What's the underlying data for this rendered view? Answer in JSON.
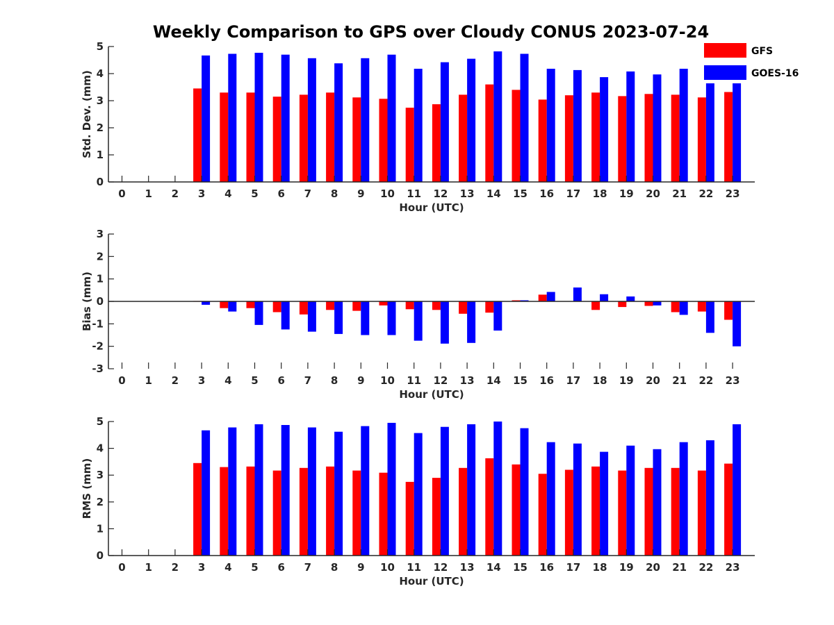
{
  "title": "Weekly Comparison to GPS over Cloudy CONUS 2023-07-24",
  "legend": [
    {
      "name": "GFS",
      "color": "#ff0000"
    },
    {
      "name": "GOES-16",
      "color": "#0000ff"
    }
  ],
  "chart_data": [
    {
      "type": "bar",
      "title": "Weekly Comparison to GPS over Cloudy CONUS 2023-07-24",
      "xlabel": "Hour (UTC)",
      "ylabel": "Std. Dev. (mm)",
      "categories": [
        "0",
        "1",
        "2",
        "3",
        "4",
        "5",
        "6",
        "7",
        "8",
        "9",
        "10",
        "11",
        "12",
        "13",
        "14",
        "15",
        "16",
        "17",
        "18",
        "19",
        "20",
        "21",
        "22",
        "23"
      ],
      "ylim": [
        0,
        5
      ],
      "yticks": [
        "0",
        "1",
        "2",
        "3",
        "4",
        "5"
      ],
      "grid": false,
      "legend_position": "top-right",
      "series": [
        {
          "name": "GFS",
          "color": "#ff0000",
          "values": [
            null,
            null,
            null,
            3.45,
            3.3,
            3.3,
            3.15,
            3.22,
            3.3,
            3.12,
            3.07,
            2.74,
            2.87,
            3.22,
            3.6,
            3.4,
            3.04,
            3.2,
            3.3,
            3.17,
            3.25,
            3.22,
            3.12,
            3.32
          ]
        },
        {
          "name": "GOES-16",
          "color": "#0000ff",
          "values": [
            null,
            null,
            null,
            4.67,
            4.73,
            4.77,
            4.7,
            4.57,
            4.38,
            4.57,
            4.7,
            4.18,
            4.42,
            4.55,
            4.82,
            4.73,
            4.18,
            4.13,
            3.87,
            4.08,
            3.97,
            4.18,
            4.05,
            4.48
          ]
        }
      ]
    },
    {
      "type": "bar",
      "xlabel": "Hour (UTC)",
      "ylabel": "Bias (mm)",
      "categories": [
        "0",
        "1",
        "2",
        "3",
        "4",
        "5",
        "6",
        "7",
        "8",
        "9",
        "10",
        "11",
        "12",
        "13",
        "14",
        "15",
        "16",
        "17",
        "18",
        "19",
        "20",
        "21",
        "22",
        "23"
      ],
      "ylim": [
        -3,
        3
      ],
      "yticks": [
        "-3",
        "-2",
        "-1",
        "0",
        "1",
        "2",
        "3"
      ],
      "grid": false,
      "series": [
        {
          "name": "GFS",
          "color": "#ff0000",
          "values": [
            null,
            null,
            null,
            0.02,
            -0.3,
            -0.3,
            -0.48,
            -0.58,
            -0.38,
            -0.42,
            -0.18,
            -0.35,
            -0.38,
            -0.55,
            -0.5,
            0.05,
            0.3,
            0.0,
            -0.38,
            -0.25,
            -0.2,
            -0.48,
            -0.45,
            -0.82
          ]
        },
        {
          "name": "GOES-16",
          "color": "#0000ff",
          "values": [
            null,
            null,
            null,
            -0.15,
            -0.45,
            -1.05,
            -1.25,
            -1.35,
            -1.45,
            -1.5,
            -1.5,
            -1.75,
            -1.88,
            -1.85,
            -1.3,
            0.05,
            0.42,
            0.62,
            0.32,
            0.22,
            -0.18,
            -0.6,
            -1.4,
            -2.0
          ]
        }
      ]
    },
    {
      "type": "bar",
      "xlabel": "Hour (UTC)",
      "ylabel": "RMS (mm)",
      "categories": [
        "0",
        "1",
        "2",
        "3",
        "4",
        "5",
        "6",
        "7",
        "8",
        "9",
        "10",
        "11",
        "12",
        "13",
        "14",
        "15",
        "16",
        "17",
        "18",
        "19",
        "20",
        "21",
        "22",
        "23"
      ],
      "ylim": [
        0,
        5
      ],
      "yticks": [
        "0",
        "1",
        "2",
        "3",
        "4",
        "5"
      ],
      "grid": false,
      "series": [
        {
          "name": "GFS",
          "color": "#ff0000",
          "values": [
            null,
            null,
            null,
            3.45,
            3.3,
            3.32,
            3.17,
            3.27,
            3.32,
            3.17,
            3.09,
            2.75,
            2.9,
            3.27,
            3.63,
            3.4,
            3.05,
            3.2,
            3.32,
            3.17,
            3.27,
            3.27,
            3.17,
            3.43
          ]
        },
        {
          "name": "GOES-16",
          "color": "#0000ff",
          "values": [
            null,
            null,
            null,
            4.67,
            4.78,
            4.9,
            4.87,
            4.78,
            4.62,
            4.83,
            4.95,
            4.57,
            4.8,
            4.9,
            5.0,
            4.75,
            4.23,
            4.18,
            3.87,
            4.1,
            3.97,
            4.23,
            4.3,
            4.9
          ]
        }
      ]
    }
  ]
}
